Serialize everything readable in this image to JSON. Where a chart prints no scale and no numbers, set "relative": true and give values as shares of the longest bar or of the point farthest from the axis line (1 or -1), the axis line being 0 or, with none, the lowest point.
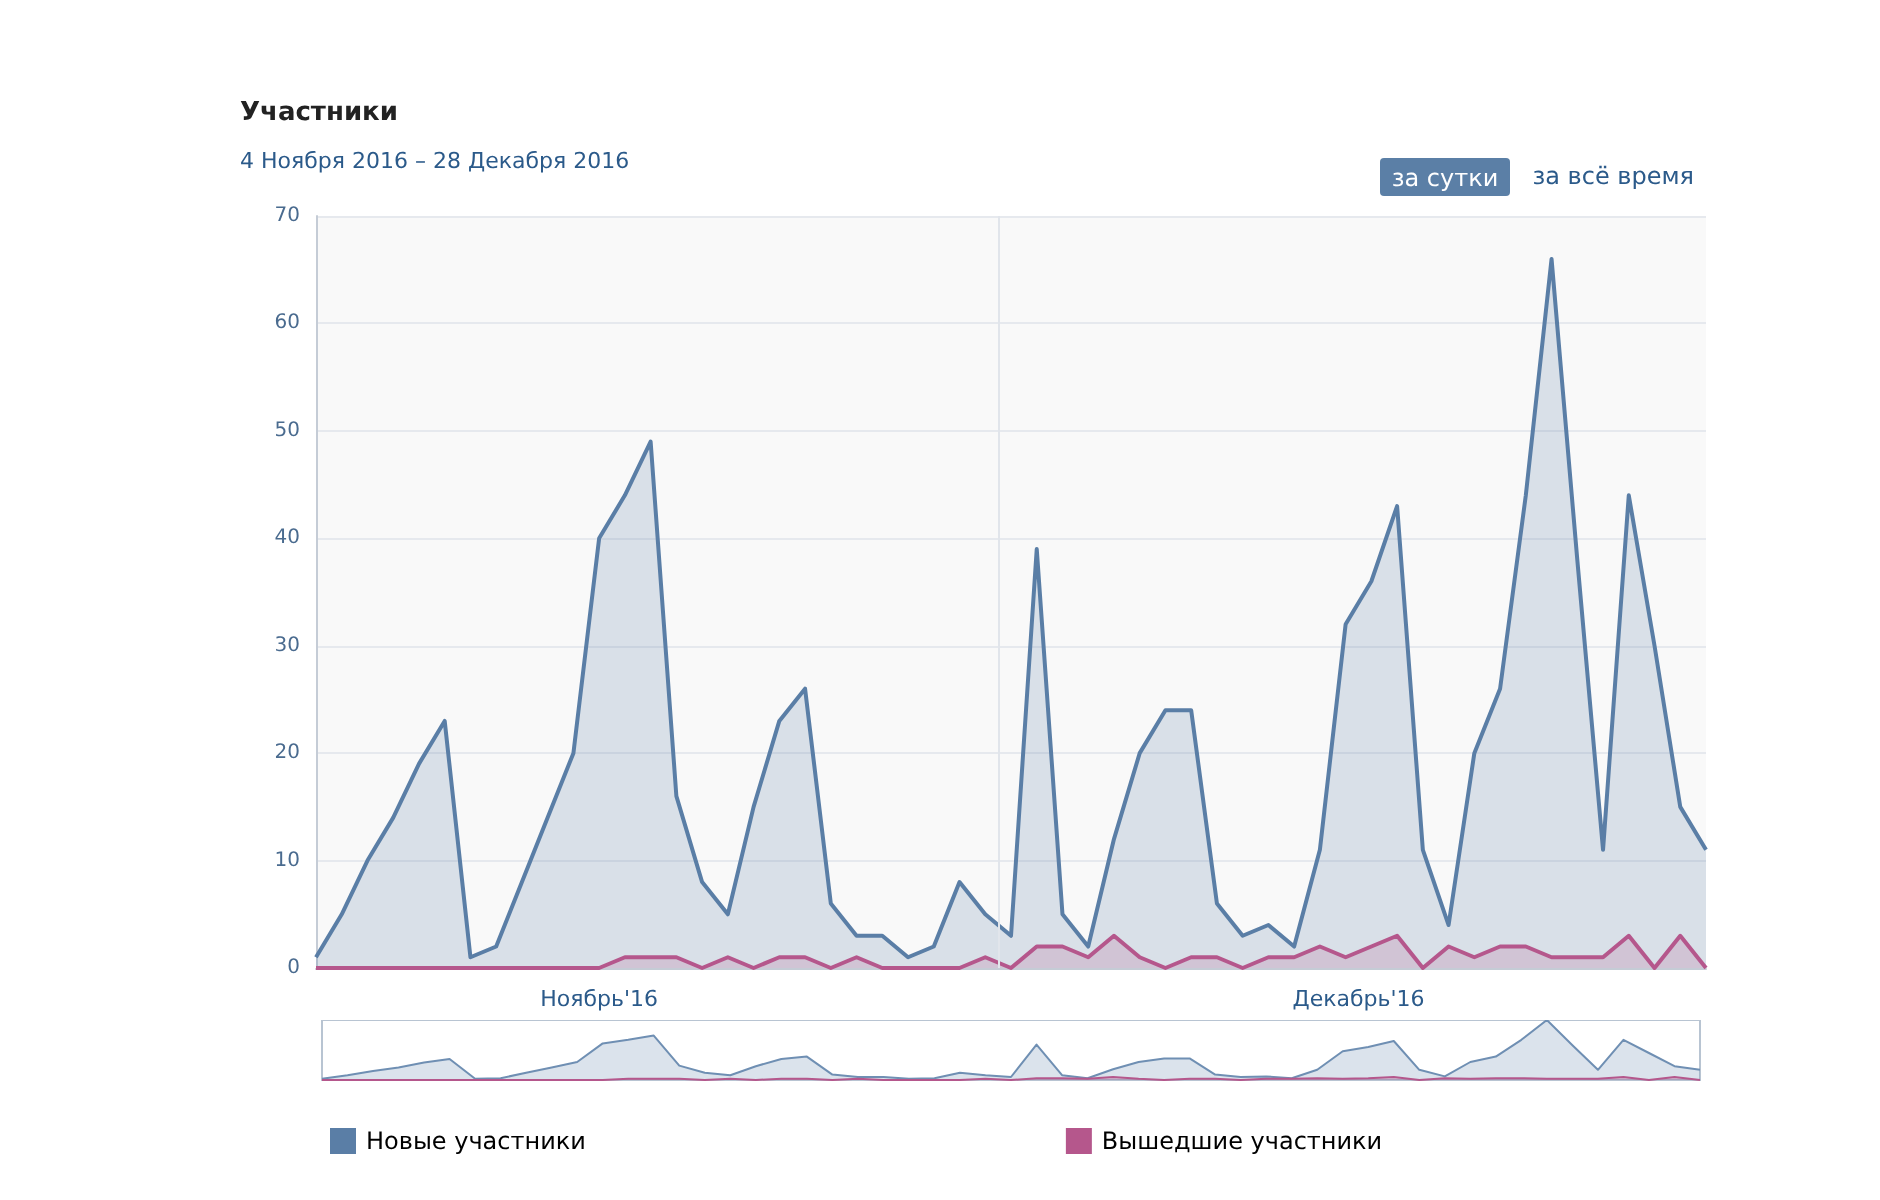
{
  "chart_data": [
    {
      "type": "area",
      "title": "Участники",
      "subtitle": "4 Ноября 2016 – 28 Декабря 2016",
      "annotations": [
        "за сутки",
        "за всё время"
      ],
      "x": [
        "2016-11-04",
        "2016-11-05",
        "2016-11-06",
        "2016-11-07",
        "2016-11-08",
        "2016-11-09",
        "2016-11-10",
        "2016-11-11",
        "2016-11-12",
        "2016-11-13",
        "2016-11-14",
        "2016-11-15",
        "2016-11-16",
        "2016-11-17",
        "2016-11-18",
        "2016-11-19",
        "2016-11-20",
        "2016-11-21",
        "2016-11-22",
        "2016-11-23",
        "2016-11-24",
        "2016-11-25",
        "2016-11-26",
        "2016-11-27",
        "2016-11-28",
        "2016-11-29",
        "2016-11-30",
        "2016-12-01",
        "2016-12-02",
        "2016-12-03",
        "2016-12-04",
        "2016-12-05",
        "2016-12-06",
        "2016-12-07",
        "2016-12-08",
        "2016-12-09",
        "2016-12-10",
        "2016-12-11",
        "2016-12-12",
        "2016-12-13",
        "2016-12-14",
        "2016-12-15",
        "2016-12-16",
        "2016-12-17",
        "2016-12-18",
        "2016-12-19",
        "2016-12-20",
        "2016-12-21",
        "2016-12-22",
        "2016-12-23",
        "2016-12-24",
        "2016-12-25",
        "2016-12-26",
        "2016-12-27",
        "2016-12-28"
      ],
      "series": [
        {
          "name": "Новые участники",
          "color": "#5a7ea6",
          "values": [
            1,
            5,
            10,
            14,
            19,
            23,
            1,
            2,
            8,
            14,
            20,
            40,
            44,
            49,
            16,
            8,
            5,
            15,
            23,
            26,
            6,
            3,
            3,
            1,
            2,
            8,
            5,
            3,
            39,
            5,
            2,
            12,
            20,
            24,
            24,
            6,
            3,
            4,
            2,
            11,
            32,
            36,
            43,
            11,
            4,
            20,
            26,
            44,
            66,
            38,
            11,
            44,
            30,
            15,
            11
          ]
        },
        {
          "name": "Вышедшие участники",
          "color": "#b5578c",
          "values": [
            0,
            0,
            0,
            0,
            0,
            0,
            0,
            0,
            0,
            0,
            0,
            0,
            1,
            1,
            1,
            0,
            1,
            0,
            1,
            1,
            0,
            1,
            0,
            0,
            0,
            0,
            1,
            0,
            2,
            2,
            1,
            3,
            1,
            0,
            1,
            1,
            0,
            1,
            1,
            2,
            1,
            2,
            3,
            0,
            2,
            1,
            2,
            2,
            1,
            1,
            1,
            3,
            0,
            3,
            0
          ]
        }
      ],
      "xlim": [
        "2016-11-04",
        "2016-12-28"
      ],
      "xticks": [
        {
          "value": "2016-11-15",
          "label": "Ноябрь'16"
        },
        {
          "value": "2016-12-14T12:00",
          "label": "Декабрь'16"
        }
      ],
      "ylim": [
        0,
        70
      ],
      "yticks": [
        0,
        10,
        20,
        30,
        40,
        50,
        60,
        70
      ],
      "ref_lines": [
        {
          "axis": "x",
          "value": "2016-11-30T12:00",
          "color": "#e1e5eb"
        }
      ],
      "grid": "y",
      "legend": "bottom",
      "marker": "none",
      "line_style": "solid"
    },
    {
      "type": "area",
      "relative": true,
      "marker": "none",
      "categories": [
        null,
        null,
        null,
        null,
        null,
        null,
        null,
        null,
        null,
        null,
        null,
        null,
        null,
        null,
        null,
        null,
        null,
        null,
        null,
        null,
        null,
        null,
        null,
        null,
        null,
        null,
        null,
        null,
        null,
        null,
        null,
        null,
        null,
        null,
        null,
        null,
        null,
        null,
        null,
        null,
        null,
        null,
        null,
        null,
        null,
        null,
        null,
        null,
        null,
        null,
        null,
        null,
        null,
        null,
        null
      ],
      "series": [
        {
          "color": "#6f8fb3",
          "values": [
            0.02,
            0.08,
            0.15,
            0.21,
            0.29,
            0.35,
            0.02,
            0.03,
            0.12,
            0.21,
            0.3,
            0.61,
            0.67,
            0.74,
            0.24,
            0.12,
            0.08,
            0.23,
            0.35,
            0.39,
            0.09,
            0.05,
            0.05,
            0.02,
            0.03,
            0.12,
            0.08,
            0.05,
            0.59,
            0.08,
            0.03,
            0.18,
            0.3,
            0.36,
            0.36,
            0.09,
            0.05,
            0.06,
            0.03,
            0.17,
            0.48,
            0.55,
            0.65,
            0.17,
            0.06,
            0.3,
            0.39,
            0.67,
            1,
            0.58,
            0.17,
            0.67,
            0.45,
            0.23,
            0.17
          ]
        },
        {
          "color": "#b5578c",
          "values": [
            0,
            0,
            0,
            0,
            0,
            0,
            0,
            0,
            0,
            0,
            0,
            0,
            0.02,
            0.02,
            0.02,
            0,
            0.02,
            0,
            0.02,
            0.02,
            0,
            0.02,
            0,
            0,
            0,
            0,
            0.02,
            0,
            0.03,
            0.03,
            0.02,
            0.05,
            0.02,
            0,
            0.02,
            0.02,
            0,
            0.02,
            0.02,
            0.03,
            0.02,
            0.03,
            0.05,
            0,
            0.03,
            0.02,
            0.03,
            0.03,
            0.02,
            0.02,
            0.02,
            0.05,
            0,
            0.05,
            0
          ]
        }
      ]
    }
  ]
}
